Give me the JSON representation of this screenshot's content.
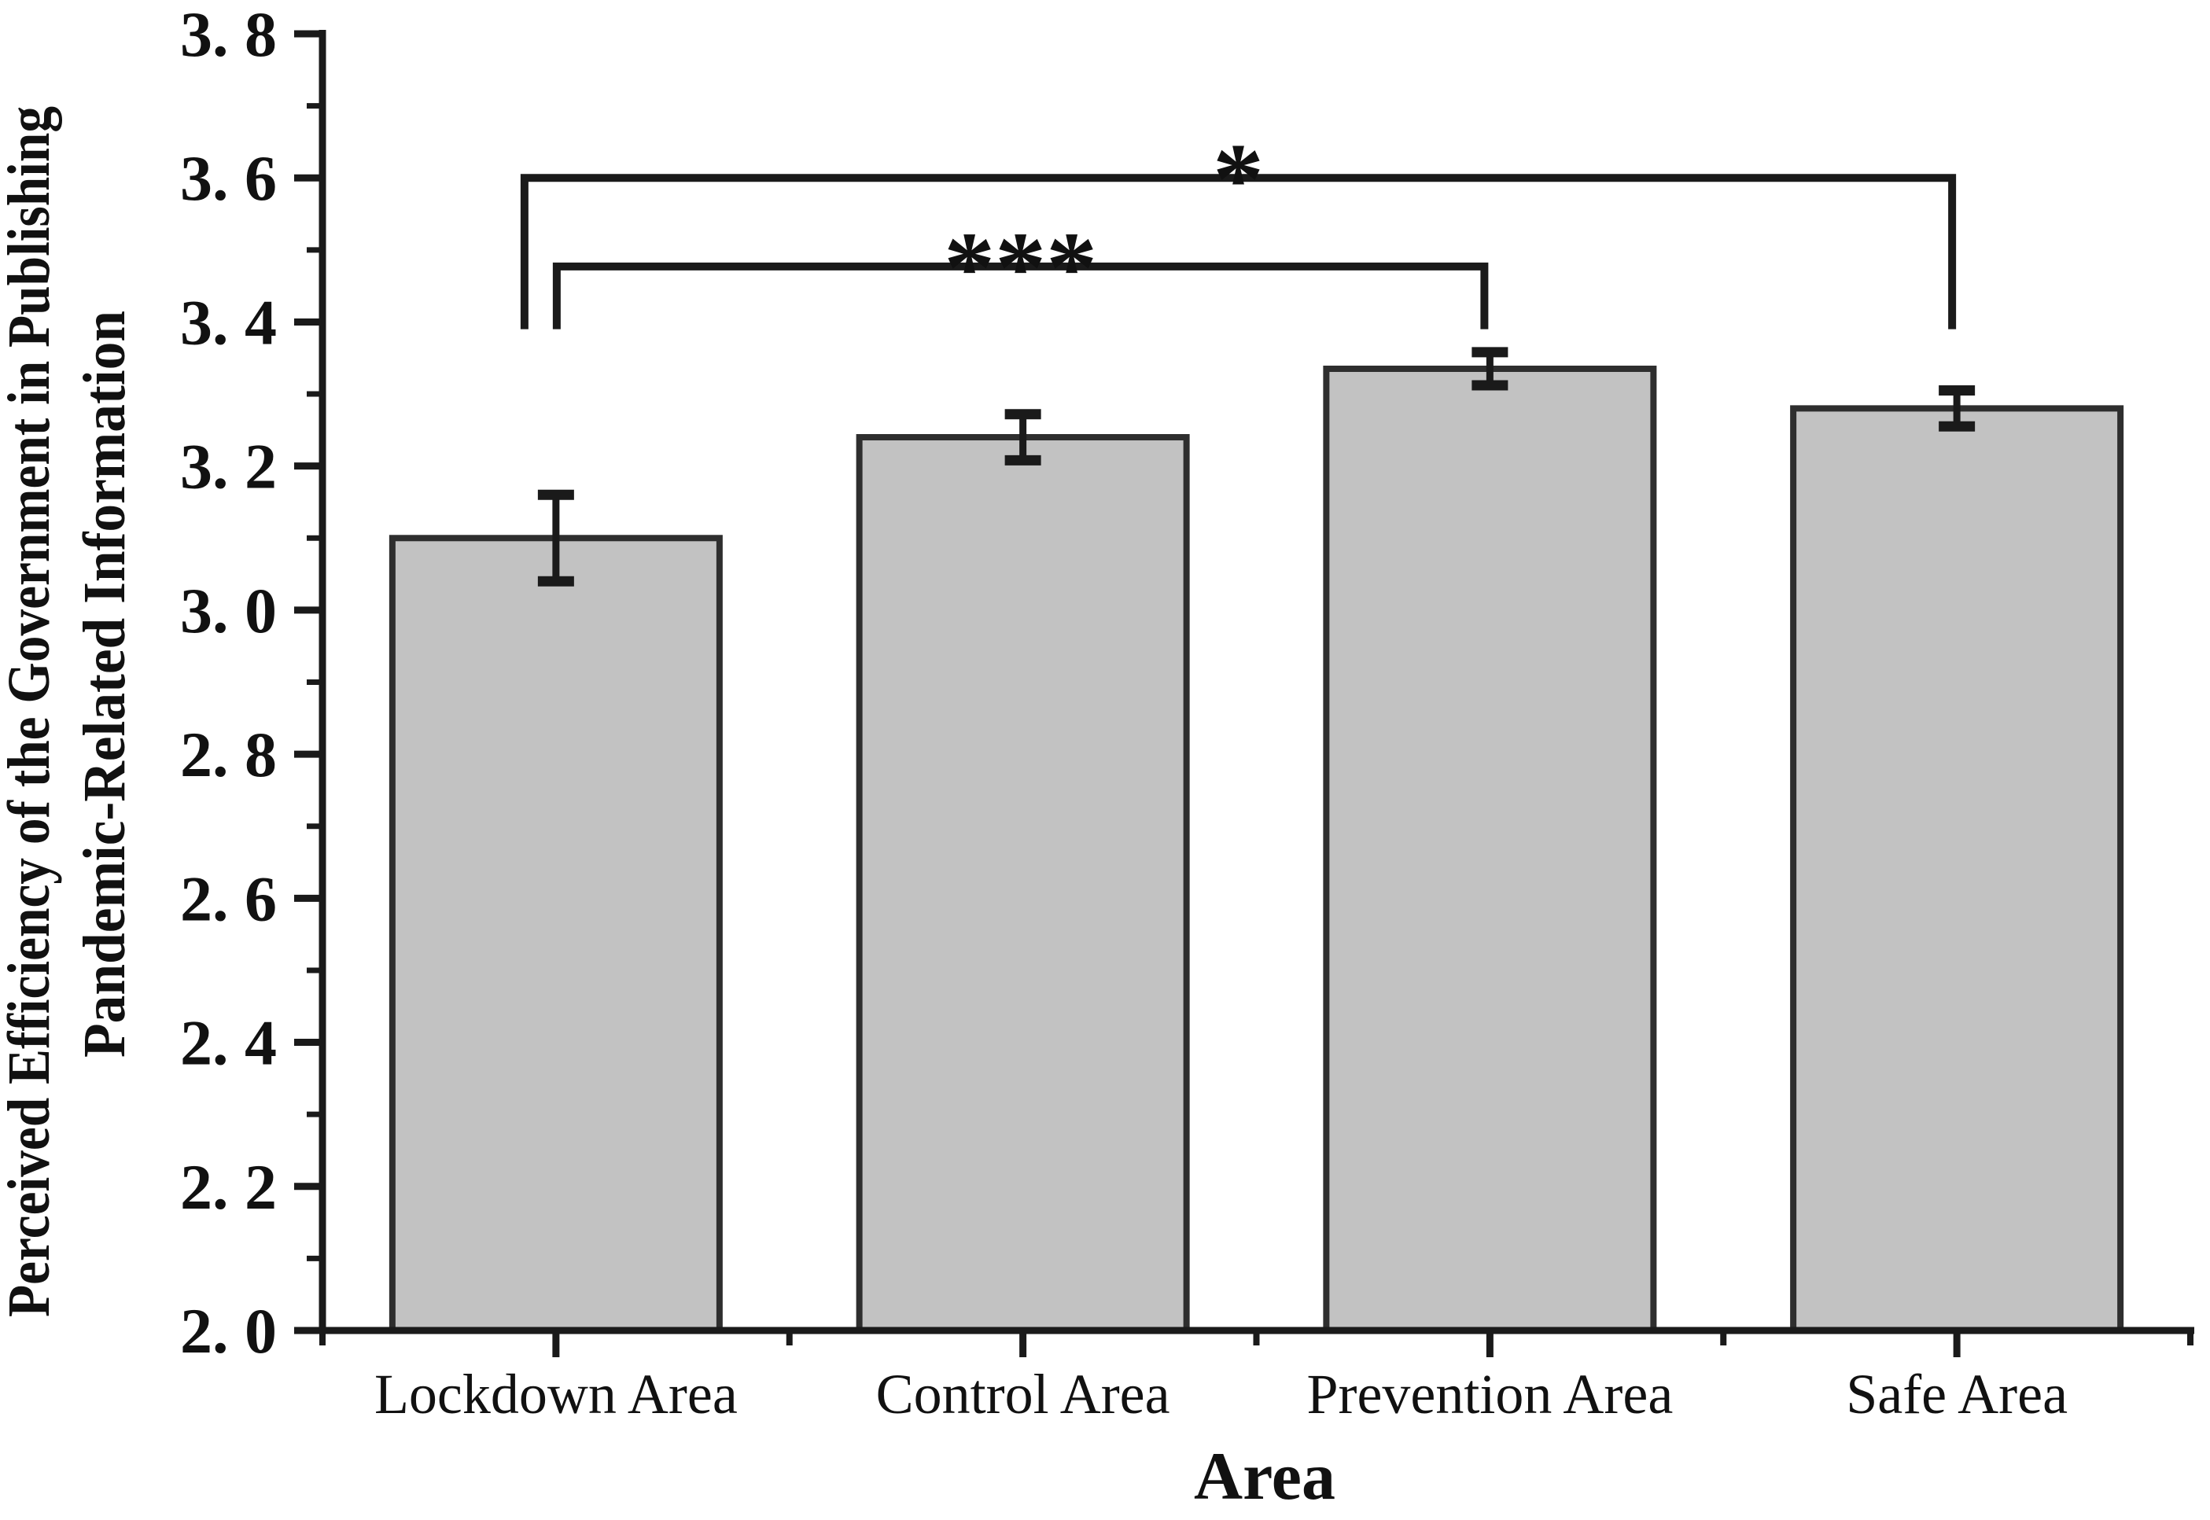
{
  "figure": {
    "background": "#ffffff"
  },
  "chart_data": {
    "type": "bar",
    "title": "",
    "categories": [
      "Lockdown Area",
      "Control Area",
      "Prevention Area",
      "Safe Area"
    ],
    "values": [
      3.1,
      3.24,
      3.335,
      3.28
    ],
    "errors": [
      0.06,
      0.032,
      0.023,
      0.025
    ],
    "xlabel": "Area",
    "ylabel_line1": "Perceived Efficiency of the Government in Publishing",
    "ylabel_line2": "Pandemic-Related Information",
    "ylim": [
      2.0,
      3.8
    ],
    "ytick_step": 0.2,
    "ytick_minor_step": 0.1,
    "ytick_labels": [
      "2. 0",
      "2. 2",
      "2. 4",
      "2. 6",
      "2. 8",
      "3. 0",
      "3. 2",
      "3. 4",
      "3. 6",
      "3. 8"
    ],
    "grid": false,
    "legend": "none",
    "bar_fill": "#c2c2c2",
    "bar_stroke": "#2e2e2e",
    "axis_color": "#1a1a1a",
    "significance_brackets": [
      {
        "label": "***",
        "from": 0,
        "to": 2,
        "top_value": 3.477,
        "drop_to_value": 3.39,
        "from_dx": 1,
        "to_dx": -7
      },
      {
        "label": "*",
        "from": 0,
        "to": 3,
        "top_value": 3.6,
        "drop_to_value": 3.39,
        "from_dx": -40,
        "to_dx": -6
      }
    ]
  }
}
